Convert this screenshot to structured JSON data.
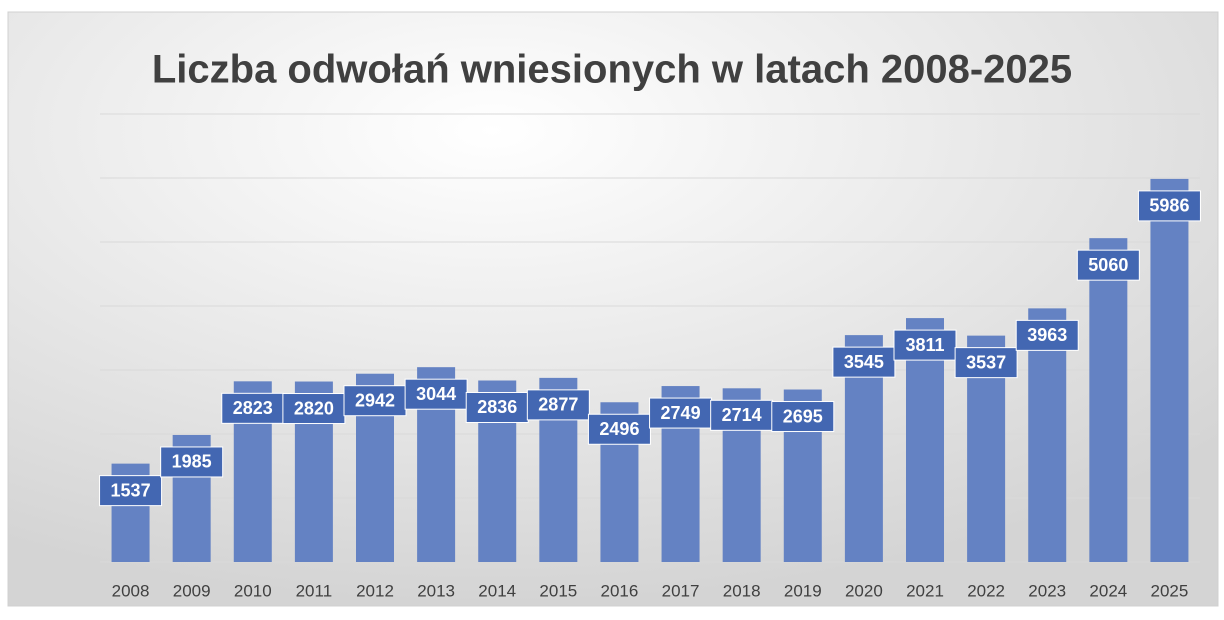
{
  "chart_data": {
    "type": "bar",
    "title": "Liczba odwołań wniesionych w latach 2008-2025",
    "categories": [
      "2008",
      "2009",
      "2010",
      "2011",
      "2012",
      "2013",
      "2014",
      "2015",
      "2016",
      "2017",
      "2018",
      "2019",
      "2020",
      "2021",
      "2022",
      "2023",
      "2024",
      "2025"
    ],
    "values": [
      1537,
      1985,
      2823,
      2820,
      2942,
      3044,
      2836,
      2877,
      2496,
      2749,
      2714,
      2695,
      3545,
      3811,
      3537,
      3963,
      5060,
      5986
    ],
    "color": "#6482c3",
    "ylim": [
      0,
      7000
    ],
    "yticks": [
      0,
      1000,
      2000,
      3000,
      4000,
      5000,
      6000,
      7000
    ],
    "grid": true
  }
}
